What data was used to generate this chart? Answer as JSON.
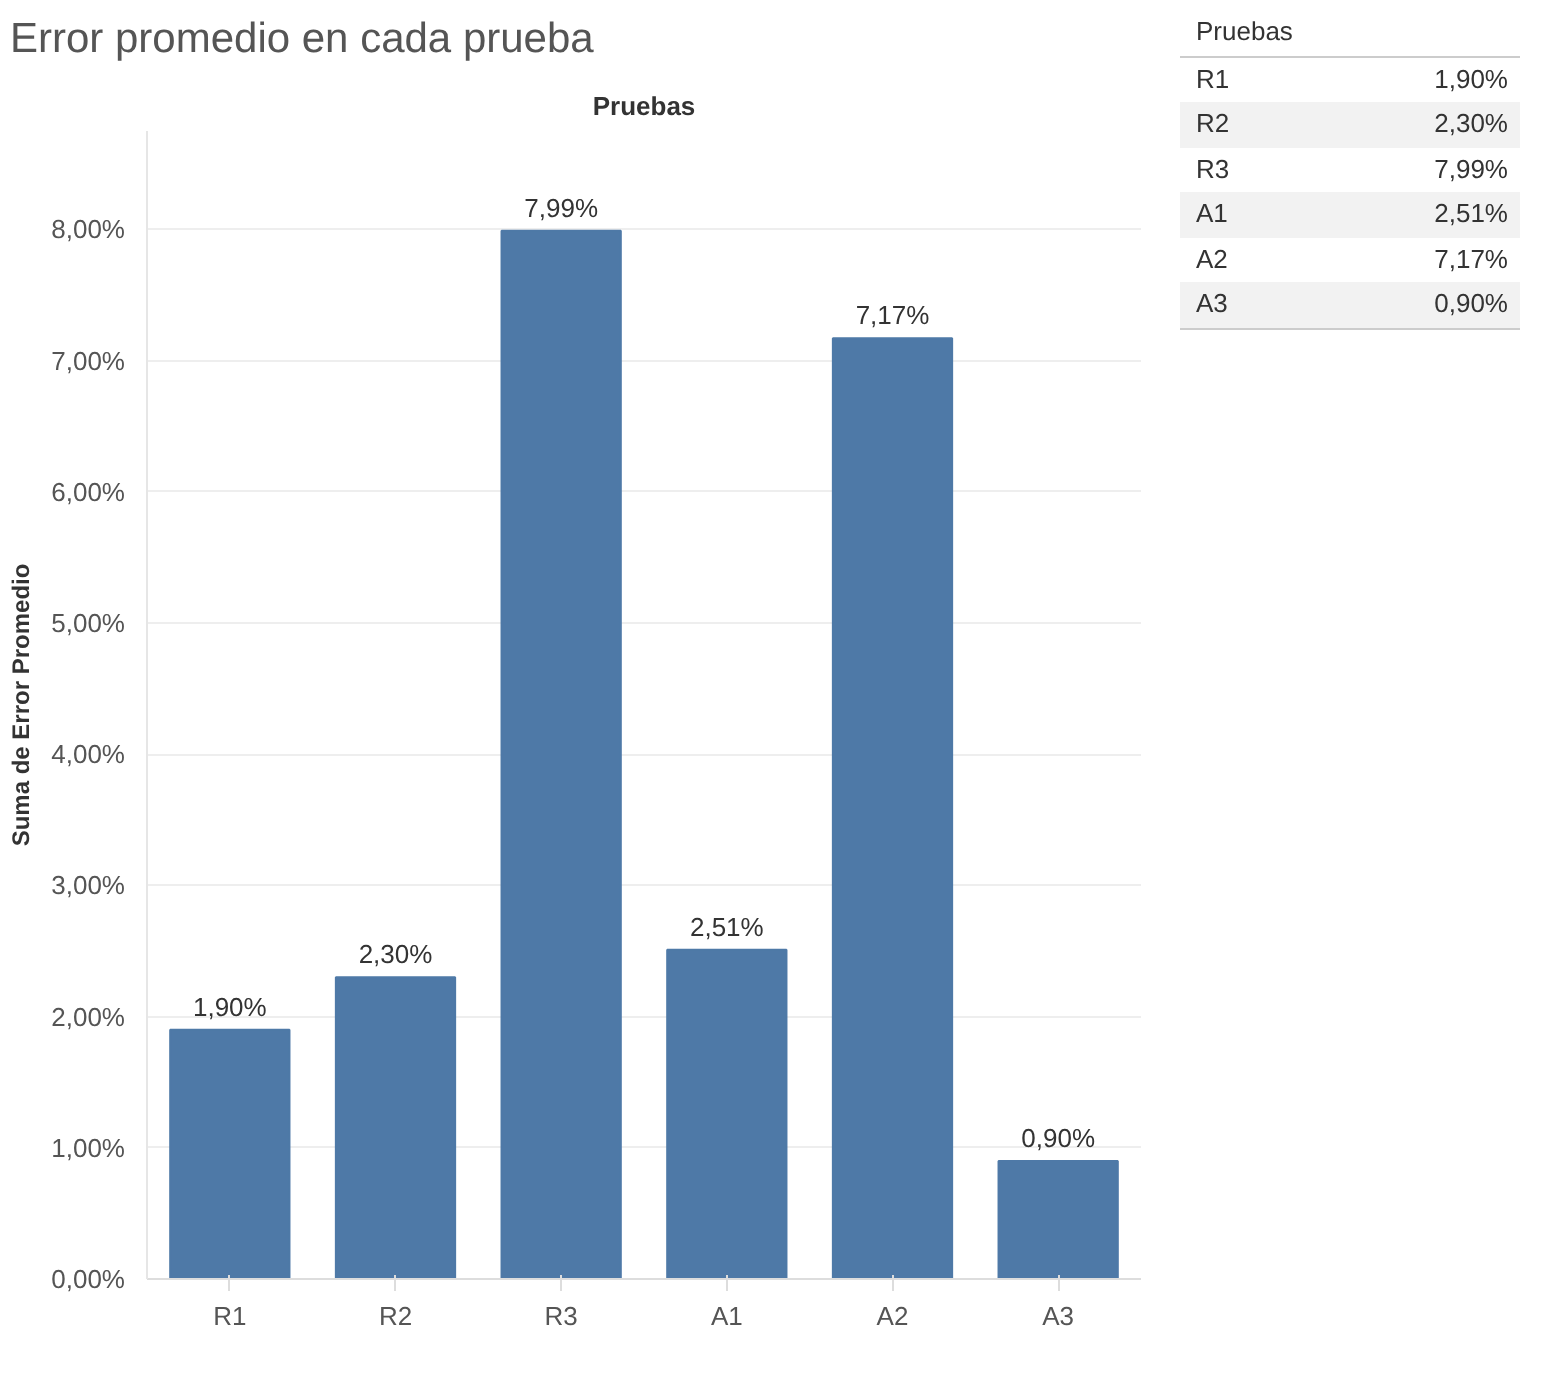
{
  "chart_data": {
    "type": "bar",
    "title": "Error promedio en cada prueba",
    "xlabel": "Pruebas",
    "ylabel": "Suma de Error Promedio",
    "categories": [
      "R1",
      "R2",
      "R3",
      "A1",
      "A2",
      "A3"
    ],
    "values": [
      1.9,
      2.3,
      7.99,
      2.51,
      7.17,
      0.9
    ],
    "value_labels": [
      "1,90%",
      "2,30%",
      "7,99%",
      "2,51%",
      "7,17%",
      "0,90%"
    ],
    "data_labels": true,
    "color": "#4e79a7",
    "ylim": [
      0,
      8.75
    ],
    "yticks": [
      {
        "value": 0,
        "label": "0,00%"
      },
      {
        "value": 1,
        "label": "1,00%"
      },
      {
        "value": 2,
        "label": "2,00%"
      },
      {
        "value": 3,
        "label": "3,00%"
      },
      {
        "value": 4,
        "label": "4,00%"
      },
      {
        "value": 5,
        "label": "5,00%"
      },
      {
        "value": 6,
        "label": "6,00%"
      },
      {
        "value": 7,
        "label": "7,00%"
      },
      {
        "value": 8,
        "label": "8,00%"
      }
    ],
    "grid": "y"
  }
}
